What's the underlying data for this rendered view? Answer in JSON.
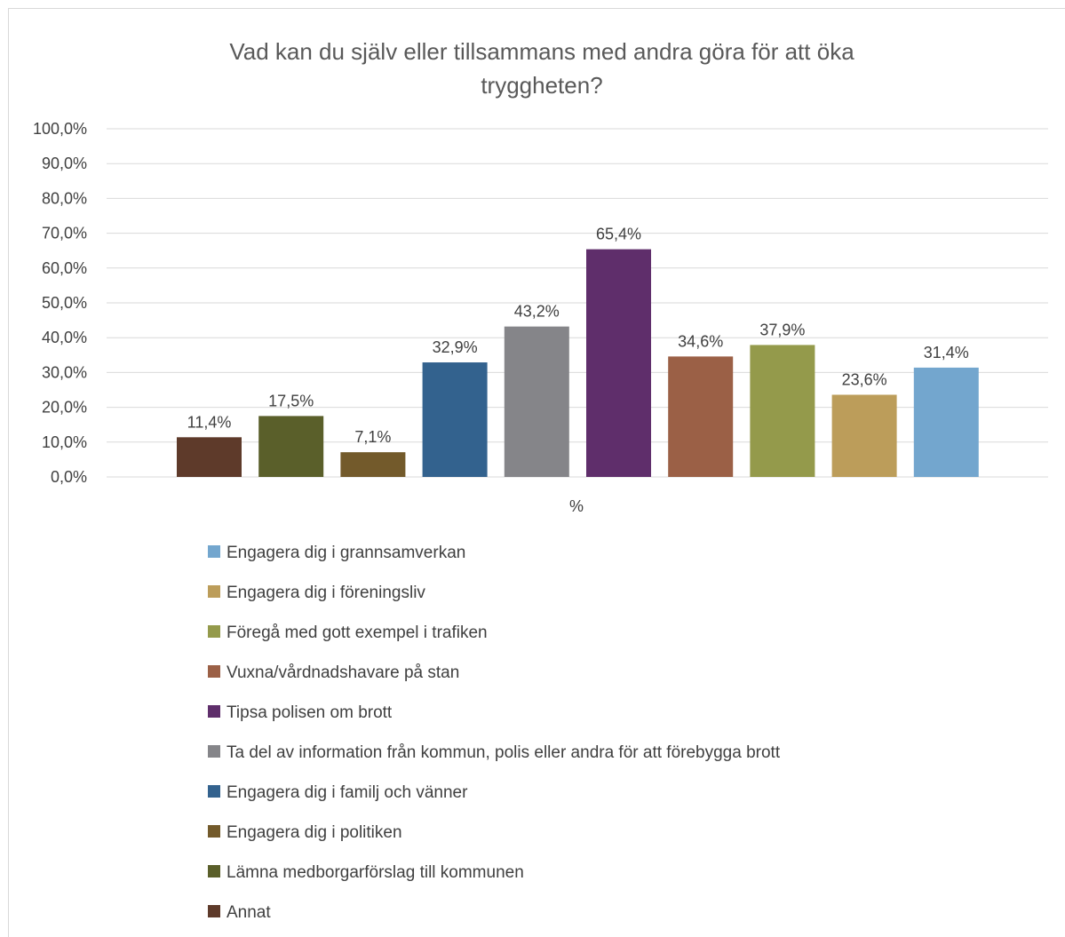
{
  "chart_data": {
    "type": "bar",
    "title_lines": [
      "Vad kan du själv eller tillsammans med andra göra för att öka",
      "tryggheten?"
    ],
    "category_label": "%",
    "ylim": [
      0,
      100
    ],
    "yticks": [
      0,
      10,
      20,
      30,
      40,
      50,
      60,
      70,
      80,
      90,
      100
    ],
    "ytick_labels": [
      "0,0%",
      "10,0%",
      "20,0%",
      "30,0%",
      "40,0%",
      "50,0%",
      "60,0%",
      "70,0%",
      "80,0%",
      "90,0%",
      "100,0%"
    ],
    "grid": true,
    "legend_position": "bottom",
    "series": [
      {
        "name": "Annat",
        "value": 11.4,
        "label": "11,4%",
        "color": "#5e3a2a"
      },
      {
        "name": "Lämna medborgarförslag till kommunen",
        "value": 17.5,
        "label": "17,5%",
        "color": "#5a5f2a"
      },
      {
        "name": "Engagera dig i politiken",
        "value": 7.1,
        "label": "7,1%",
        "color": "#735a2b"
      },
      {
        "name": "Engagera dig i familj och vänner",
        "value": 32.9,
        "label": "32,9%",
        "color": "#33628e"
      },
      {
        "name": "Ta del av information från kommun, polis eller andra för att förebygga brott",
        "value": 43.2,
        "label": "43,2%",
        "color": "#858589"
      },
      {
        "name": "Tipsa polisen om brott",
        "value": 65.4,
        "label": "65,4%",
        "color": "#5f2e6b"
      },
      {
        "name": "Vuxna/vårdnadshavare på stan",
        "value": 34.6,
        "label": "34,6%",
        "color": "#9b6046"
      },
      {
        "name": "Föregå med gott exempel i trafiken",
        "value": 37.9,
        "label": "37,9%",
        "color": "#949a4b"
      },
      {
        "name": "Engagera dig i föreningsliv",
        "value": 23.6,
        "label": "23,6%",
        "color": "#bc9d5a"
      },
      {
        "name": "Engagera dig i grannsamverkan",
        "value": 31.4,
        "label": "31,4%",
        "color": "#73a6ce"
      }
    ]
  }
}
